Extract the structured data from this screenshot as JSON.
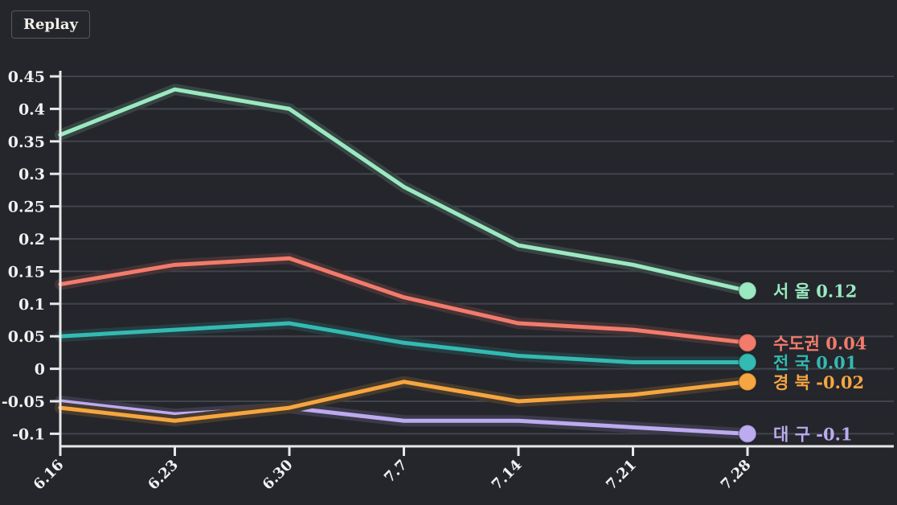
{
  "toolbar": {
    "replay_label": "Replay"
  },
  "style": {
    "background": "#24262c",
    "grid_color": "#41444b",
    "axis_color": "#e8e8e8",
    "tick_label_color": "#f1f1f1"
  },
  "chart_data": {
    "type": "line",
    "title": "",
    "xlabel": "",
    "ylabel": "",
    "x_categories": [
      "6.16",
      "6.23",
      "6.30",
      "7.7",
      "7.14",
      "7.21",
      "7.28"
    ],
    "y_ticks": [
      "0.45",
      "0.4",
      "0.35",
      "0.3",
      "0.25",
      "0.2",
      "0.15",
      "0.1",
      "0.05",
      "0",
      "-0.05",
      "-0.1"
    ],
    "ylim": [
      -0.1,
      0.45
    ],
    "grid": true,
    "legend_position": "right-end-of-lines",
    "series": [
      {
        "key": "seoul",
        "label": "서 울",
        "region": "서울",
        "color": "#9be9c1",
        "values": [
          0.36,
          0.43,
          0.4,
          0.28,
          0.19,
          0.16,
          0.12
        ],
        "end_label": "0.12",
        "z": 1
      },
      {
        "key": "sudogwon",
        "label": "수도권",
        "region": "수도권",
        "color": "#f27b6c",
        "values": [
          0.13,
          0.16,
          0.17,
          0.11,
          0.07,
          0.06,
          0.04
        ],
        "end_label": "0.04",
        "z": 2
      },
      {
        "key": "jeonguk",
        "label": "전 국",
        "region": "전국",
        "color": "#34bab2",
        "values": [
          0.05,
          0.06,
          0.07,
          0.04,
          0.02,
          0.01,
          0.01
        ],
        "end_label": "0.01",
        "z": 3
      },
      {
        "key": "gyeongbuk",
        "label": "경 북",
        "region": "경북",
        "color": "#f6a640",
        "values": [
          -0.06,
          -0.08,
          -0.06,
          -0.02,
          -0.05,
          -0.04,
          -0.02
        ],
        "end_label": "-0.02",
        "z": 5
      },
      {
        "key": "daegu",
        "label": "대 구",
        "region": "대구",
        "color": "#bcabef",
        "values": [
          -0.05,
          -0.07,
          -0.06,
          -0.08,
          -0.08,
          -0.09,
          -0.1
        ],
        "end_label": "-0.1",
        "z": 4
      }
    ]
  }
}
